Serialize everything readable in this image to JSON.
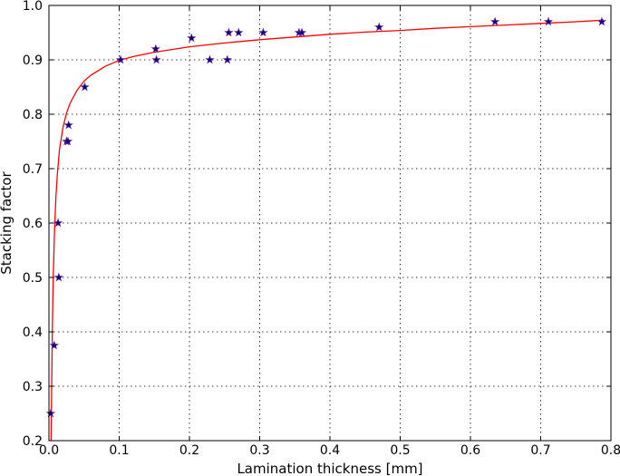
{
  "chart_data": {
    "type": "scatter",
    "title": "",
    "xlabel": "Lamination thickness [mm]",
    "ylabel": "Stacking factor",
    "xlim": [
      0.0,
      0.8
    ],
    "ylim": [
      0.2,
      1.0
    ],
    "x_ticks": [
      "0.0",
      "0.1",
      "0.2",
      "0.3",
      "0.4",
      "0.5",
      "0.6",
      "0.7",
      "0.8"
    ],
    "y_ticks": [
      "0.2",
      "0.3",
      "0.4",
      "0.5",
      "0.6",
      "0.7",
      "0.8",
      "0.9",
      "1.0"
    ],
    "grid": true,
    "marker_color": "#00008b",
    "marker_outline": "#7b2d8e",
    "fit_color": "#ff0000",
    "series": [
      {
        "kind": "points",
        "marker": "star",
        "x": [
          0.0025,
          0.0075,
          0.013,
          0.014,
          0.025,
          0.027,
          0.028,
          0.051,
          0.102,
          0.152,
          0.153,
          0.203,
          0.229,
          0.254,
          0.256,
          0.27,
          0.305,
          0.356,
          0.36,
          0.47,
          0.635,
          0.711,
          0.787
        ],
        "y": [
          0.25,
          0.375,
          0.6,
          0.5,
          0.75,
          0.75,
          0.78,
          0.85,
          0.9,
          0.92,
          0.9,
          0.94,
          0.9,
          0.9,
          0.95,
          0.95,
          0.95,
          0.95,
          0.95,
          0.96,
          0.97,
          0.97,
          0.97
        ]
      },
      {
        "kind": "fit-line",
        "x": [
          0.003,
          0.004,
          0.005,
          0.006,
          0.008,
          0.01,
          0.012,
          0.015,
          0.02,
          0.025,
          0.03,
          0.04,
          0.05,
          0.06,
          0.08,
          0.1,
          0.12,
          0.15,
          0.2,
          0.25,
          0.3,
          0.35,
          0.4,
          0.45,
          0.5,
          0.55,
          0.6,
          0.65,
          0.7,
          0.75,
          0.79
        ],
        "y": [
          0.2,
          0.313,
          0.418,
          0.494,
          0.588,
          0.65,
          0.69,
          0.735,
          0.776,
          0.802,
          0.82,
          0.844,
          0.861,
          0.872,
          0.888,
          0.899,
          0.906,
          0.914,
          0.924,
          0.931,
          0.937,
          0.942,
          0.947,
          0.951,
          0.954,
          0.958,
          0.961,
          0.964,
          0.967,
          0.97,
          0.973
        ]
      }
    ]
  }
}
